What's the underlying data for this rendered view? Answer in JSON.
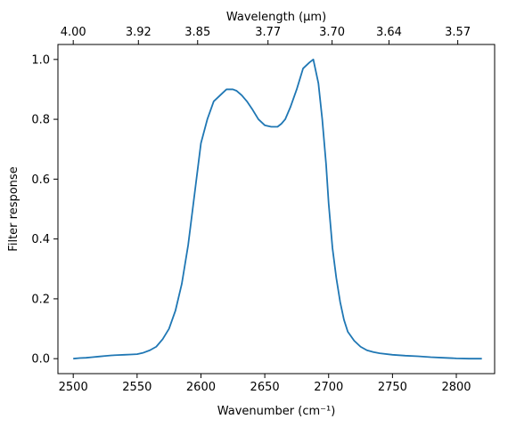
{
  "chart_data": {
    "type": "line",
    "xlabel": "Wavenumber (cm⁻¹)",
    "ylabel": "Filter response",
    "top_xlabel": "Wavelength (μm)",
    "xlim": [
      2488,
      2830
    ],
    "ylim": [
      -0.05,
      1.05
    ],
    "x_ticks": [
      2500,
      2550,
      2600,
      2650,
      2700,
      2750,
      2800
    ],
    "x_tick_labels": [
      "2500",
      "2550",
      "2600",
      "2650",
      "2700",
      "2750",
      "2800"
    ],
    "y_ticks": [
      0.0,
      0.2,
      0.4,
      0.6,
      0.8,
      1.0
    ],
    "y_tick_labels": [
      "0.0",
      "0.2",
      "0.4",
      "0.6",
      "0.8",
      "1.0"
    ],
    "top_ticks": [
      {
        "wavelength": 4.0,
        "label": "4.00"
      },
      {
        "wavelength": 3.92,
        "label": "3.92"
      },
      {
        "wavelength": 3.85,
        "label": "3.85"
      },
      {
        "wavelength": 3.77,
        "label": "3.77"
      },
      {
        "wavelength": 3.7,
        "label": "3.70"
      },
      {
        "wavelength": 3.64,
        "label": "3.64"
      },
      {
        "wavelength": 3.57,
        "label": "3.57"
      }
    ],
    "grid": false,
    "series": [
      {
        "color": "#1f77b4",
        "x": [
          2500,
          2505,
          2510,
          2515,
          2520,
          2525,
          2530,
          2535,
          2540,
          2545,
          2550,
          2555,
          2560,
          2565,
          2570,
          2575,
          2580,
          2585,
          2590,
          2595,
          2600,
          2605,
          2610,
          2615,
          2620,
          2625,
          2628,
          2632,
          2636,
          2640,
          2645,
          2650,
          2655,
          2660,
          2663,
          2666,
          2670,
          2675,
          2680,
          2685,
          2688,
          2692,
          2695,
          2698,
          2700,
          2703,
          2706,
          2709,
          2712,
          2715,
          2720,
          2725,
          2730,
          2735,
          2740,
          2750,
          2760,
          2770,
          2780,
          2790,
          2800,
          2810,
          2820
        ],
        "y": [
          0.0,
          0.002,
          0.003,
          0.005,
          0.007,
          0.009,
          0.011,
          0.012,
          0.013,
          0.014,
          0.015,
          0.02,
          0.028,
          0.04,
          0.065,
          0.1,
          0.16,
          0.25,
          0.38,
          0.55,
          0.72,
          0.8,
          0.86,
          0.88,
          0.9,
          0.9,
          0.895,
          0.88,
          0.86,
          0.835,
          0.8,
          0.78,
          0.775,
          0.775,
          0.785,
          0.8,
          0.84,
          0.9,
          0.97,
          0.99,
          1.0,
          0.92,
          0.8,
          0.65,
          0.52,
          0.37,
          0.27,
          0.19,
          0.13,
          0.09,
          0.06,
          0.04,
          0.028,
          0.022,
          0.018,
          0.013,
          0.01,
          0.008,
          0.005,
          0.003,
          0.001,
          0.0,
          0.0
        ]
      }
    ]
  }
}
